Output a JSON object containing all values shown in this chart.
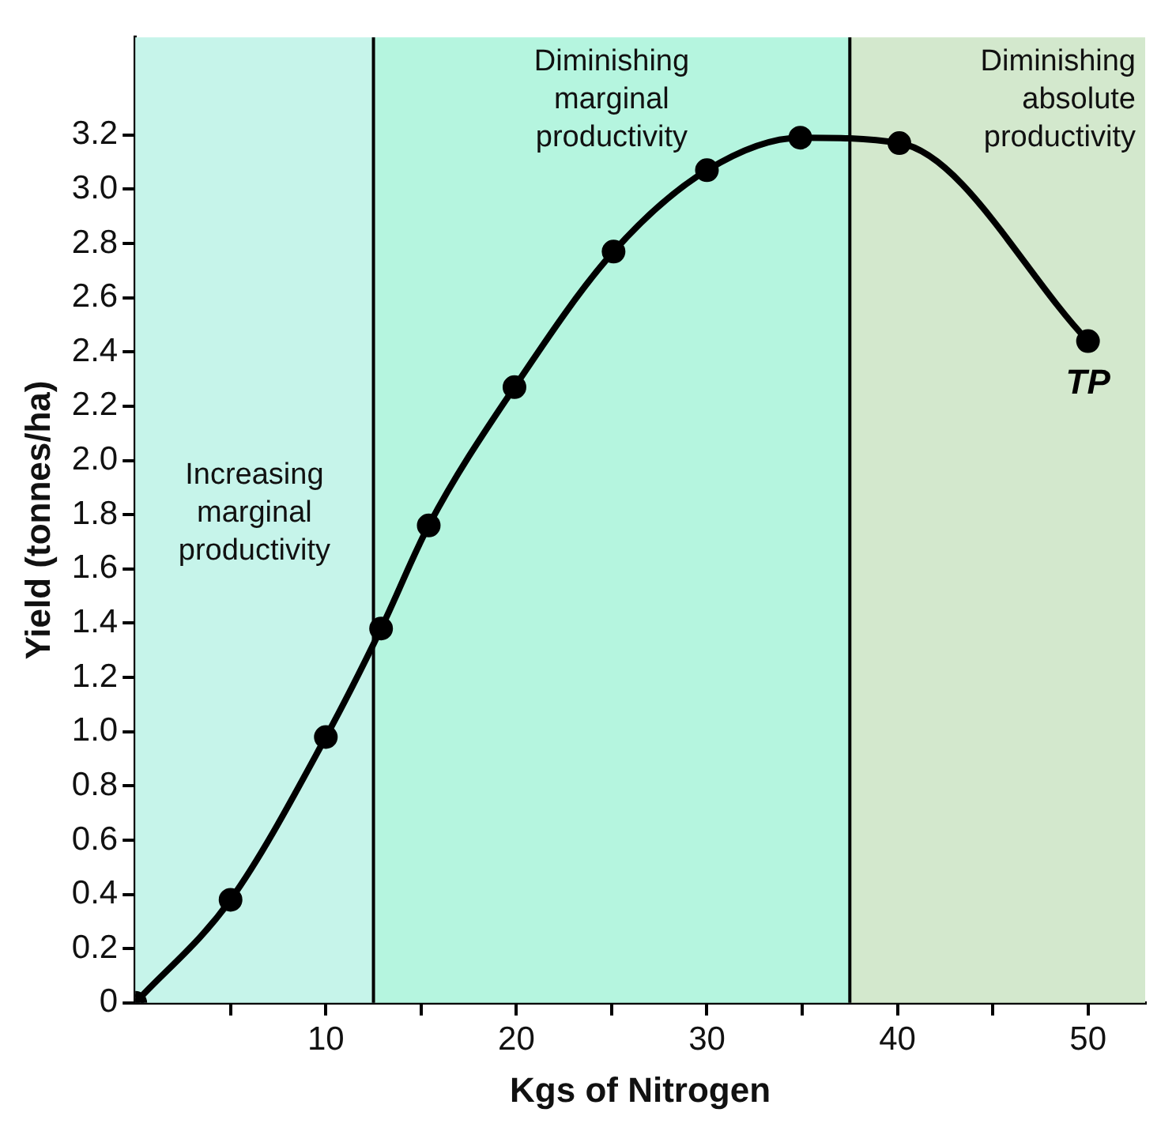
{
  "chart_data": {
    "type": "line",
    "xlabel": "Kgs of Nitrogen",
    "ylabel": "Yield (tonnes/ha)",
    "x": [
      0,
      5,
      10,
      12.9,
      15.4,
      19.9,
      25.1,
      30,
      34.9,
      40.1,
      50
    ],
    "series": [
      {
        "color": "#000000",
        "values": [
          0,
          0.38,
          0.98,
          1.38,
          1.76,
          2.27,
          2.77,
          3.07,
          3.19,
          3.17,
          2.44
        ]
      }
    ],
    "xlim": [
      0,
      53
    ],
    "ylim": [
      0,
      3.56
    ],
    "xticks": [
      {
        "value": 5,
        "label": null
      },
      10,
      {
        "value": 15,
        "label": null
      },
      20,
      {
        "value": 25,
        "label": null
      },
      30,
      {
        "value": 35,
        "label": null
      },
      40,
      {
        "value": 45,
        "label": null
      },
      50
    ],
    "yticks": [
      0,
      0.2,
      0.4,
      0.6,
      0.8,
      {
        "value": 1,
        "label": "1.0"
      },
      1.2,
      1.4,
      1.6,
      1.8,
      {
        "value": 2,
        "label": "2.0"
      },
      2.2,
      2.4,
      2.6,
      2.8,
      {
        "value": 3,
        "label": "3.0"
      },
      3.2
    ],
    "bands": [
      {
        "axis": "x",
        "from": 0,
        "to": 12.5,
        "label": "Increasing marginal productivity",
        "color": "#c6f4ea"
      },
      {
        "axis": "x",
        "from": 12.5,
        "to": 37.5,
        "label": "Diminishing marginal productivity",
        "color": "#b5f5df"
      },
      {
        "axis": "x",
        "from": 37.5,
        "to": 53,
        "label": "Diminishing absolute productivity",
        "color": "#d3e8cd"
      }
    ],
    "ref_lines": [
      {
        "axis": "x",
        "value": 12.5,
        "color": "#000000"
      },
      {
        "axis": "x",
        "value": 37.5,
        "color": "#000000"
      }
    ],
    "annotations": [
      {
        "text": "TP",
        "x": 50,
        "y": 2.44
      }
    ],
    "grid": false,
    "legend": false,
    "marker": "circle",
    "line_style": "solid"
  }
}
